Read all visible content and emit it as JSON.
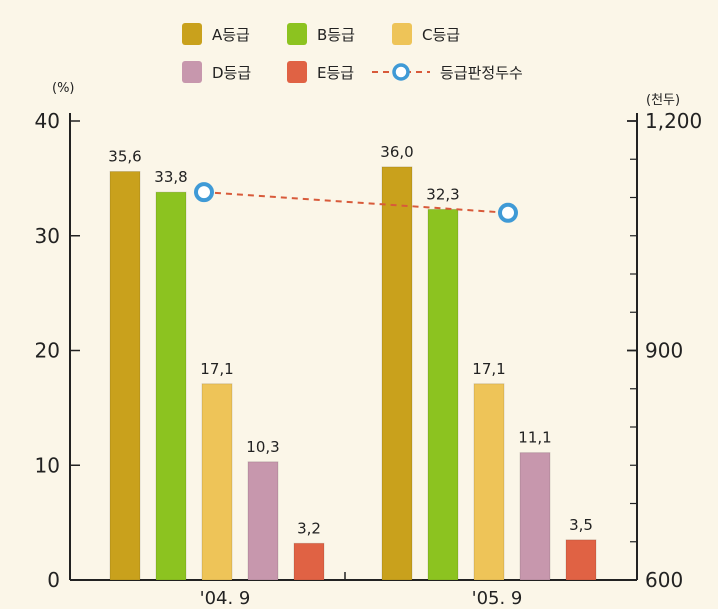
{
  "chart_data": {
    "type": "bar",
    "title": "",
    "categories": [
      "'04. 9",
      "'05. 9"
    ],
    "ylabel": "(%)",
    "y2label": "(천두)",
    "ylim": [
      0,
      40
    ],
    "y2lim": [
      600,
      1200
    ],
    "yticks": [
      "0",
      "10",
      "20",
      "30",
      "40"
    ],
    "y2ticks": [
      "600",
      "900",
      "1,200"
    ],
    "series": [
      {
        "name": "A등급",
        "color": "#c9a11c",
        "values": [
          35.6,
          36.0
        ],
        "labels": [
          "35,6",
          "36,0"
        ]
      },
      {
        "name": "B등급",
        "color": "#8cc320",
        "values": [
          33.8,
          32.3
        ],
        "labels": [
          "33,8",
          "32,3"
        ]
      },
      {
        "name": "C등급",
        "color": "#eec458",
        "values": [
          17.1,
          17.1
        ],
        "labels": [
          "17,1",
          "17,1"
        ]
      },
      {
        "name": "D등급",
        "color": "#c797ad",
        "values": [
          10.3,
          11.1
        ],
        "labels": [
          "10,3",
          "11,1"
        ]
      },
      {
        "name": "E등급",
        "color": "#e06244",
        "values": [
          3.2,
          3.5
        ],
        "labels": [
          "3,2",
          "3,5"
        ]
      }
    ],
    "line_series": {
      "name": "등급판정두수",
      "axis": "right",
      "line_color": "#d85a3a",
      "marker_color": "#3f9ad6",
      "values": [
        1107,
        1080
      ]
    },
    "grid": false,
    "legend": "top"
  }
}
